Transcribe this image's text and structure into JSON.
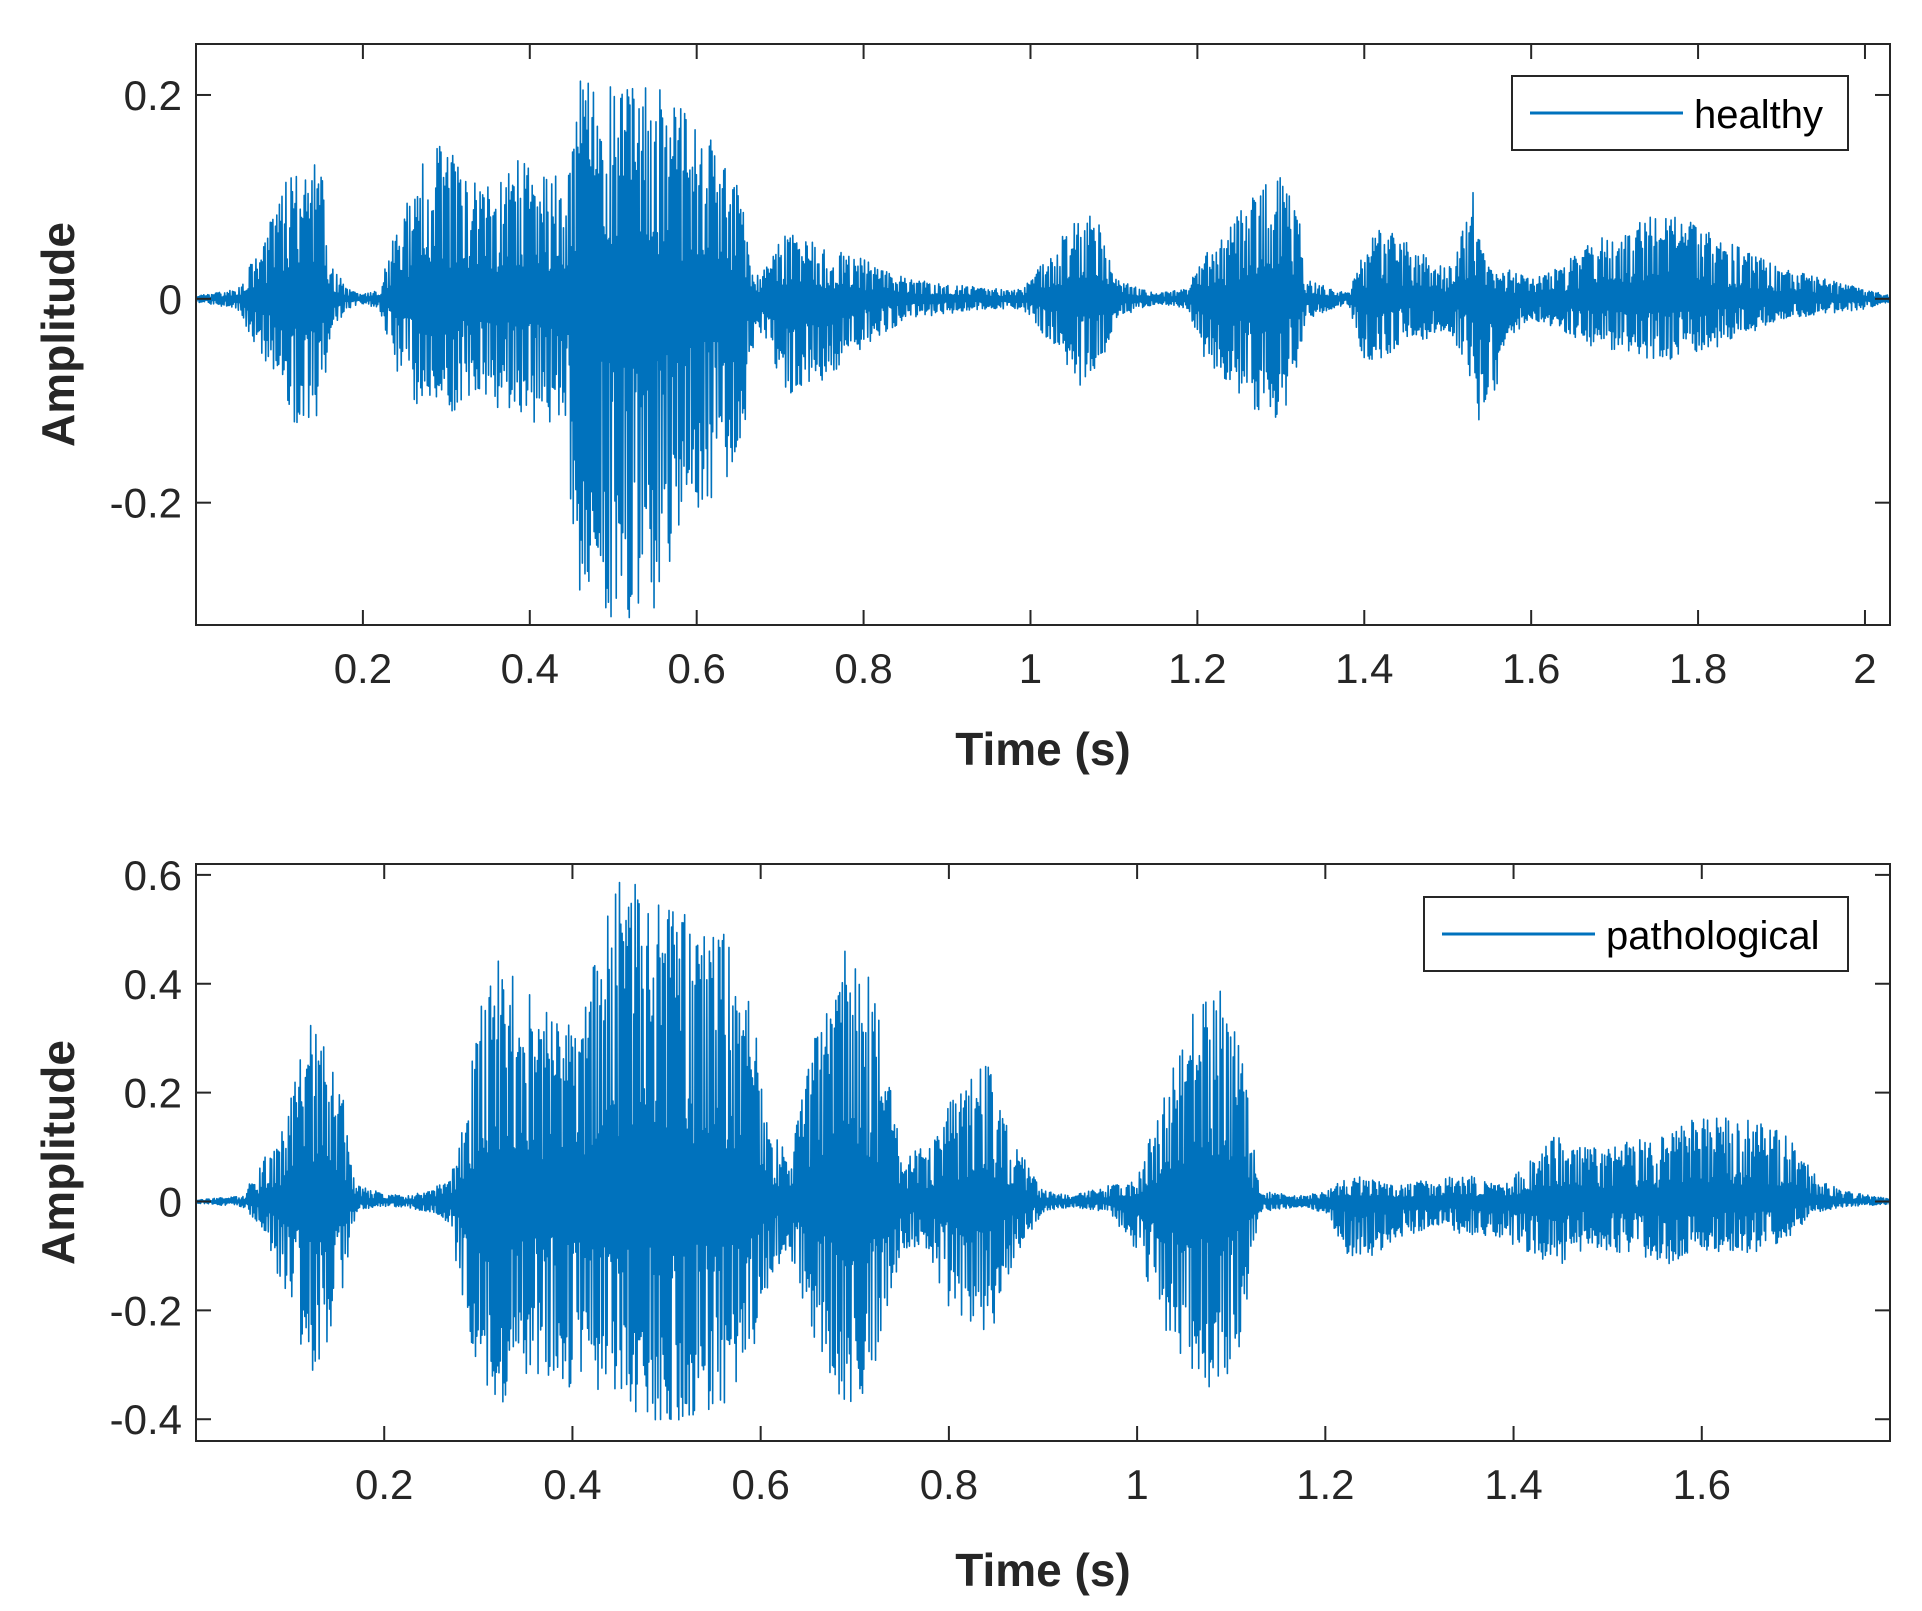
{
  "figure": {
    "line_color": "#0072BD",
    "axis_color": "#262626",
    "background": "#ffffff"
  },
  "chart_data": [
    {
      "type": "line",
      "xlabel": "Time (s)",
      "ylabel": "Amplitude",
      "xlim": [
        0,
        2.03
      ],
      "ylim": [
        -0.32,
        0.25
      ],
      "xticks": [
        0.2,
        0.4,
        0.6,
        0.8,
        1,
        1.2,
        1.4,
        1.6,
        1.8,
        2
      ],
      "xtick_labels": [
        "0.2",
        "0.4",
        "0.6",
        "0.8",
        "1",
        "1.2",
        "1.4",
        "1.6",
        "1.8",
        "2"
      ],
      "yticks": [
        0.2,
        0,
        -0.2
      ],
      "ytick_labels": [
        "0.2",
        "0",
        "-0.2"
      ],
      "legend_location": "top-right",
      "series": [
        {
          "name": "healthy",
          "color": "#0072BD",
          "envelope": {
            "t": [
              0.0,
              0.05,
              0.06,
              0.09,
              0.12,
              0.15,
              0.16,
              0.18,
              0.2,
              0.22,
              0.24,
              0.27,
              0.3,
              0.33,
              0.4,
              0.44,
              0.46,
              0.5,
              0.55,
              0.6,
              0.65,
              0.67,
              0.71,
              0.75,
              0.8,
              0.85,
              0.95,
              0.99,
              1.03,
              1.06,
              1.09,
              1.1,
              1.15,
              1.19,
              1.2,
              1.23,
              1.28,
              1.3,
              1.32,
              1.33,
              1.38,
              1.4,
              1.42,
              1.45,
              1.48,
              1.5,
              1.52,
              1.53,
              1.54,
              1.55,
              1.57,
              1.6,
              1.63,
              1.68,
              1.73,
              1.78,
              1.85,
              1.9,
              2.0,
              2.03
            ],
            "upper": [
              0.003,
              0.01,
              0.03,
              0.08,
              0.14,
              0.14,
              0.04,
              0.01,
              0.005,
              0.01,
              0.07,
              0.14,
              0.16,
              0.12,
              0.14,
              0.12,
              0.22,
              0.21,
              0.21,
              0.18,
              0.12,
              0.02,
              0.07,
              0.05,
              0.04,
              0.02,
              0.01,
              0.01,
              0.05,
              0.09,
              0.07,
              0.02,
              0.005,
              0.01,
              0.04,
              0.06,
              0.12,
              0.12,
              0.1,
              0.02,
              0.005,
              0.05,
              0.07,
              0.06,
              0.04,
              0.03,
              0.08,
              0.13,
              0.05,
              0.03,
              0.03,
              0.02,
              0.03,
              0.06,
              0.08,
              0.08,
              0.05,
              0.03,
              0.01,
              0.003
            ],
            "lower": [
              -0.003,
              -0.01,
              -0.03,
              -0.07,
              -0.13,
              -0.12,
              -0.04,
              -0.01,
              -0.005,
              -0.01,
              -0.07,
              -0.11,
              -0.12,
              -0.1,
              -0.12,
              -0.13,
              -0.29,
              -0.32,
              -0.31,
              -0.21,
              -0.18,
              -0.03,
              -0.1,
              -0.08,
              -0.05,
              -0.02,
              -0.01,
              -0.01,
              -0.05,
              -0.09,
              -0.06,
              -0.02,
              -0.005,
              -0.01,
              -0.05,
              -0.08,
              -0.12,
              -0.12,
              -0.08,
              -0.02,
              -0.005,
              -0.06,
              -0.06,
              -0.04,
              -0.04,
              -0.03,
              -0.06,
              -0.09,
              -0.13,
              -0.12,
              -0.04,
              -0.02,
              -0.03,
              -0.05,
              -0.06,
              -0.06,
              -0.04,
              -0.02,
              -0.01,
              -0.003
            ]
          }
        }
      ]
    },
    {
      "type": "line",
      "xlabel": "Time (s)",
      "ylabel": "Amplitude",
      "xlim": [
        0,
        1.8
      ],
      "ylim": [
        -0.44,
        0.62
      ],
      "xticks": [
        0.2,
        0.4,
        0.6,
        0.8,
        1,
        1.2,
        1.4,
        1.6
      ],
      "xtick_labels": [
        "0.2",
        "0.4",
        "0.6",
        "0.8",
        "1",
        "1.2",
        "1.4",
        "1.6"
      ],
      "yticks": [
        0.6,
        0.4,
        0.2,
        0,
        -0.2,
        -0.4
      ],
      "ytick_labels": [
        "0.6",
        "0.4",
        "0.2",
        "0",
        "-0.2",
        "-0.4"
      ],
      "legend_location": "top-right",
      "series": [
        {
          "name": "pathological",
          "color": "#0072BD",
          "envelope": {
            "t": [
              0.0,
              0.05,
              0.07,
              0.09,
              0.12,
              0.15,
              0.17,
              0.19,
              0.22,
              0.25,
              0.27,
              0.28,
              0.3,
              0.32,
              0.36,
              0.4,
              0.43,
              0.45,
              0.48,
              0.52,
              0.56,
              0.59,
              0.61,
              0.63,
              0.66,
              0.69,
              0.72,
              0.75,
              0.78,
              0.8,
              0.84,
              0.87,
              0.9,
              0.93,
              0.97,
              1.0,
              1.03,
              1.06,
              1.09,
              1.11,
              1.13,
              1.17,
              1.2,
              1.23,
              1.27,
              1.31,
              1.35,
              1.39,
              1.42,
              1.45,
              1.48,
              1.52,
              1.56,
              1.6,
              1.65,
              1.69,
              1.72,
              1.75,
              1.8
            ],
            "upper": [
              0.003,
              0.01,
              0.08,
              0.12,
              0.33,
              0.26,
              0.03,
              0.02,
              0.01,
              0.02,
              0.05,
              0.12,
              0.35,
              0.45,
              0.37,
              0.34,
              0.58,
              0.59,
              0.6,
              0.55,
              0.5,
              0.39,
              0.14,
              0.08,
              0.32,
              0.5,
              0.4,
              0.08,
              0.11,
              0.18,
              0.26,
              0.11,
              0.02,
              0.01,
              0.03,
              0.04,
              0.22,
              0.35,
              0.4,
              0.3,
              0.02,
              0.01,
              0.02,
              0.05,
              0.03,
              0.04,
              0.05,
              0.03,
              0.08,
              0.13,
              0.1,
              0.11,
              0.12,
              0.16,
              0.15,
              0.13,
              0.05,
              0.02,
              0.005
            ],
            "lower": [
              -0.003,
              -0.01,
              -0.05,
              -0.15,
              -0.33,
              -0.23,
              -0.02,
              -0.01,
              -0.01,
              -0.02,
              -0.04,
              -0.15,
              -0.32,
              -0.38,
              -0.32,
              -0.35,
              -0.37,
              -0.4,
              -0.43,
              -0.4,
              -0.38,
              -0.32,
              -0.14,
              -0.09,
              -0.28,
              -0.38,
              -0.34,
              -0.09,
              -0.1,
              -0.2,
              -0.27,
              -0.1,
              -0.02,
              -0.01,
              -0.02,
              -0.1,
              -0.25,
              -0.33,
              -0.35,
              -0.26,
              -0.02,
              -0.01,
              -0.02,
              -0.12,
              -0.08,
              -0.05,
              -0.06,
              -0.07,
              -0.1,
              -0.12,
              -0.08,
              -0.1,
              -0.12,
              -0.09,
              -0.1,
              -0.07,
              -0.02,
              -0.01,
              -0.005
            ]
          }
        }
      ]
    }
  ]
}
